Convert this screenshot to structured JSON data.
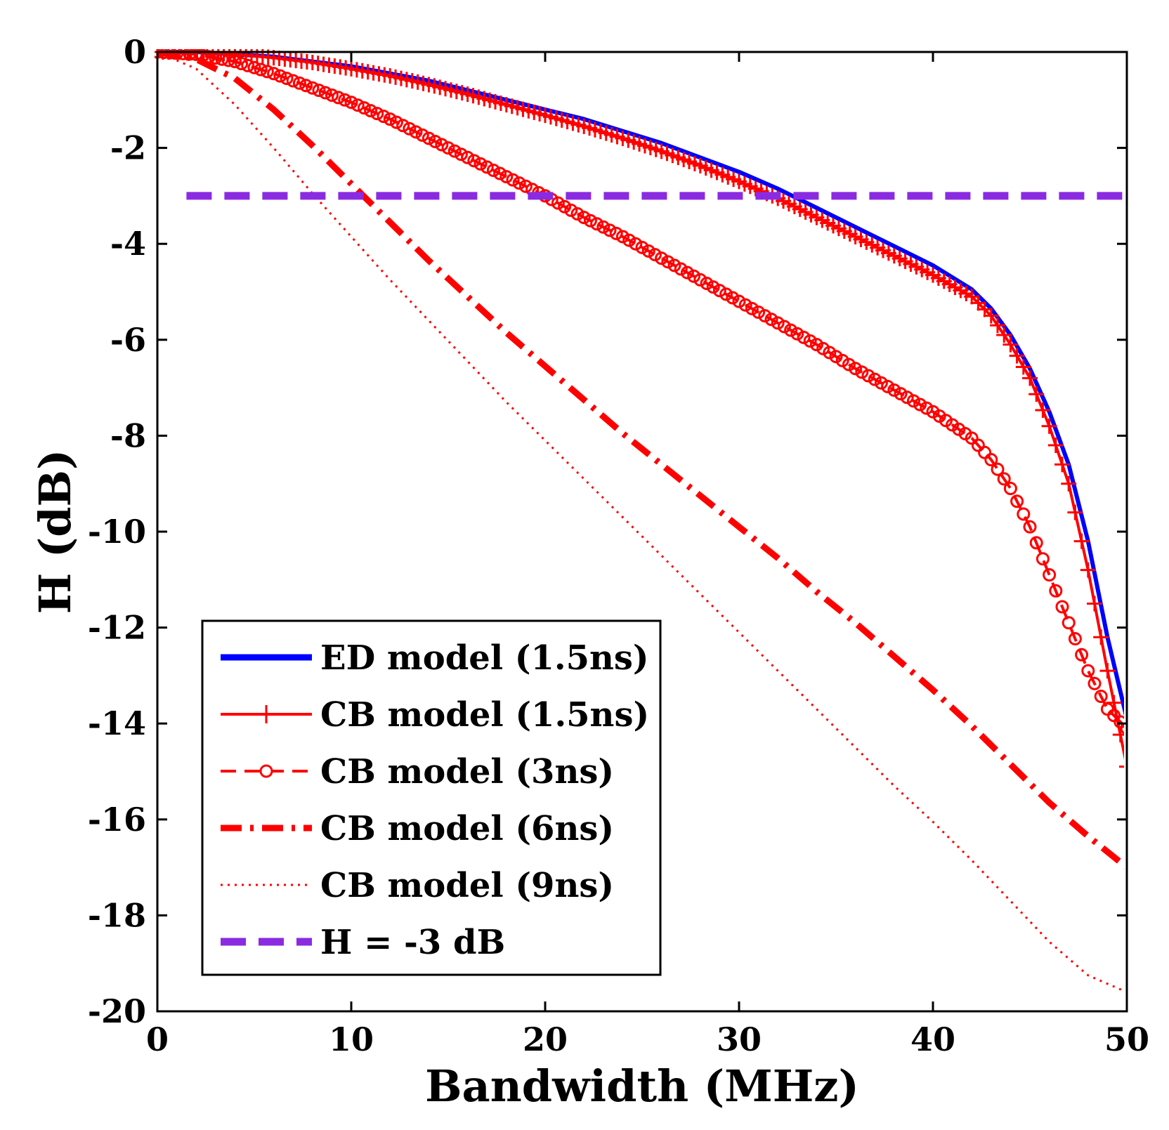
{
  "chart_data": {
    "type": "line",
    "xlabel": "Bandwidth (MHz)",
    "ylabel": "H (dB)",
    "xlim": [
      0,
      50
    ],
    "ylim": [
      -20,
      0
    ],
    "xticks": [
      0,
      10,
      20,
      30,
      40,
      50
    ],
    "yticks": [
      0,
      -2,
      -4,
      -6,
      -8,
      -10,
      -12,
      -14,
      -16,
      -18,
      -20
    ],
    "xtick_labels": [
      "0",
      "10",
      "20",
      "30",
      "40",
      "50"
    ],
    "ytick_labels": [
      "0",
      "-2",
      "-4",
      "-6",
      "-8",
      "-10",
      "-12",
      "-14",
      "-16",
      "-18",
      "-20"
    ],
    "grid": false,
    "legend_position": "bottom-left",
    "series": [
      {
        "name": "ED model (1.5ns)",
        "color": "#0000ff",
        "style": "solid",
        "marker": "none",
        "x": [
          0,
          2,
          4,
          6,
          8,
          10,
          12,
          14,
          16,
          18,
          20,
          22,
          24,
          26,
          28,
          30,
          32,
          34,
          36,
          38,
          40,
          42,
          43,
          44,
          45,
          46,
          47,
          48,
          49,
          50
        ],
        "y": [
          0,
          0,
          -0.05,
          -0.1,
          -0.2,
          -0.3,
          -0.45,
          -0.6,
          -0.8,
          -1.0,
          -1.2,
          -1.4,
          -1.65,
          -1.9,
          -2.2,
          -2.5,
          -2.85,
          -3.25,
          -3.65,
          -4.05,
          -4.45,
          -4.95,
          -5.35,
          -5.9,
          -6.6,
          -7.5,
          -8.6,
          -10.2,
          -12.2,
          -13.9
        ]
      },
      {
        "name": "CB model (1.5ns)",
        "color": "#ff0000",
        "style": "solid",
        "marker": "plus",
        "x": [
          0,
          2,
          4,
          6,
          8,
          10,
          12,
          14,
          16,
          18,
          20,
          22,
          24,
          26,
          28,
          30,
          32,
          34,
          36,
          38,
          40,
          42,
          43,
          44,
          45,
          46,
          47,
          48,
          49,
          50
        ],
        "y": [
          0,
          0,
          -0.05,
          -0.12,
          -0.22,
          -0.35,
          -0.5,
          -0.68,
          -0.88,
          -1.1,
          -1.32,
          -1.55,
          -1.8,
          -2.07,
          -2.37,
          -2.7,
          -3.05,
          -3.45,
          -3.85,
          -4.25,
          -4.65,
          -5.1,
          -5.5,
          -6.1,
          -6.8,
          -7.8,
          -9.0,
          -10.8,
          -12.9,
          -14.9
        ]
      },
      {
        "name": "CB model (3ns)",
        "color": "#ff0000",
        "style": "dashed",
        "marker": "circle",
        "x": [
          0,
          2,
          4,
          6,
          8,
          10,
          12,
          14,
          16,
          18,
          20,
          22,
          24,
          26,
          28,
          30,
          32,
          34,
          36,
          38,
          40,
          42,
          43,
          44,
          45,
          46,
          47,
          48,
          49,
          50
        ],
        "y": [
          0,
          -0.05,
          -0.2,
          -0.45,
          -0.75,
          -1.05,
          -1.4,
          -1.8,
          -2.2,
          -2.6,
          -3.0,
          -3.45,
          -3.85,
          -4.3,
          -4.75,
          -5.2,
          -5.65,
          -6.1,
          -6.6,
          -7.05,
          -7.5,
          -8.05,
          -8.5,
          -9.1,
          -9.9,
          -10.9,
          -11.9,
          -12.9,
          -13.7,
          -14.1
        ]
      },
      {
        "name": "CB model (6ns)",
        "color": "#ff0000",
        "style": "dashdot",
        "marker": "none",
        "x": [
          0,
          2,
          4,
          6,
          8,
          10,
          12,
          14,
          16,
          18,
          20,
          22,
          24,
          26,
          28,
          30,
          32,
          34,
          36,
          38,
          40,
          42,
          44,
          46,
          48,
          50
        ],
        "y": [
          0,
          -0.15,
          -0.55,
          -1.2,
          -1.95,
          -2.75,
          -3.55,
          -4.35,
          -5.1,
          -5.85,
          -6.55,
          -7.25,
          -7.95,
          -8.6,
          -9.25,
          -9.9,
          -10.55,
          -11.25,
          -11.9,
          -12.6,
          -13.3,
          -14.05,
          -14.85,
          -15.65,
          -16.35,
          -17.0
        ]
      },
      {
        "name": "CB model (9ns)",
        "color": "#ff0000",
        "style": "dotted",
        "marker": "none",
        "x": [
          0,
          2,
          4,
          6,
          8,
          10,
          12,
          14,
          16,
          18,
          20,
          22,
          24,
          26,
          28,
          30,
          32,
          34,
          36,
          38,
          40,
          42,
          44,
          46,
          48,
          50
        ],
        "y": [
          0,
          -0.35,
          -1.1,
          -2.0,
          -2.95,
          -3.85,
          -4.75,
          -5.6,
          -6.45,
          -7.3,
          -8.1,
          -8.9,
          -9.7,
          -10.5,
          -11.3,
          -12.1,
          -12.9,
          -13.7,
          -14.5,
          -15.3,
          -16.05,
          -16.85,
          -17.7,
          -18.55,
          -19.25,
          -19.6
        ]
      },
      {
        "name": "H = -3 dB",
        "color": "#8a2be2",
        "style": "dashed",
        "marker": "none",
        "x": [
          1.5,
          50
        ],
        "y": [
          -3,
          -3
        ]
      }
    ]
  }
}
